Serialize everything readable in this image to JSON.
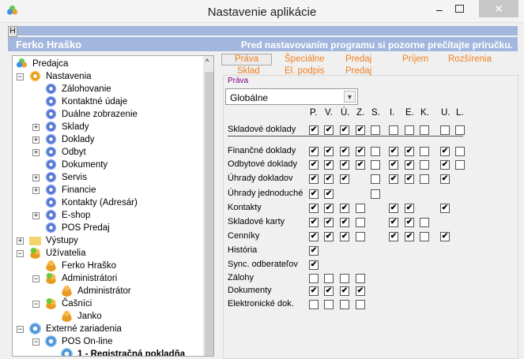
{
  "window": {
    "title": "Nastavenie aplikácie",
    "h_button": "H",
    "minimize": "‒",
    "close": "✕"
  },
  "header": {
    "user": "Ferko Hraško",
    "notice": "Pred nastavovaním programu si pozorne prečítajte príručku."
  },
  "tree": [
    {
      "label": "Predajca",
      "level": 0,
      "icon": "app",
      "exp": ""
    },
    {
      "label": "Nastavenia",
      "level": 1,
      "icon": "gearo",
      "exp": "-"
    },
    {
      "label": "Zálohovanie",
      "level": 2,
      "icon": "gear",
      "exp": ""
    },
    {
      "label": "Kontaktné údaje",
      "level": 2,
      "icon": "gear",
      "exp": ""
    },
    {
      "label": "Duálne zobrazenie",
      "level": 2,
      "icon": "gear",
      "exp": ""
    },
    {
      "label": "Sklady",
      "level": 2,
      "icon": "gear",
      "exp": "+"
    },
    {
      "label": "Doklady",
      "level": 2,
      "icon": "gear",
      "exp": "+"
    },
    {
      "label": "Odbyt",
      "level": 2,
      "icon": "gear",
      "exp": "+"
    },
    {
      "label": "Dokumenty",
      "level": 2,
      "icon": "gear",
      "exp": ""
    },
    {
      "label": "Servis",
      "level": 2,
      "icon": "gear",
      "exp": "+"
    },
    {
      "label": "Financie",
      "level": 2,
      "icon": "gear",
      "exp": "+"
    },
    {
      "label": "Kontakty (Adresár)",
      "level": 2,
      "icon": "gear",
      "exp": ""
    },
    {
      "label": "E-shop",
      "level": 2,
      "icon": "gear",
      "exp": "+"
    },
    {
      "label": "POS Predaj",
      "level": 2,
      "icon": "gear",
      "exp": ""
    },
    {
      "label": "Výstupy",
      "level": 1,
      "icon": "folder",
      "exp": "+"
    },
    {
      "label": "Užívatelia",
      "level": 1,
      "icon": "group",
      "exp": "-"
    },
    {
      "label": "Ferko Hraško",
      "level": 2,
      "icon": "user",
      "exp": ""
    },
    {
      "label": "Administrátori",
      "level": 2,
      "icon": "group",
      "exp": "-"
    },
    {
      "label": "Administrátor",
      "level": 3,
      "icon": "user",
      "exp": ""
    },
    {
      "label": "Čašníci",
      "level": 2,
      "icon": "group",
      "exp": "-"
    },
    {
      "label": "Janko",
      "level": 3,
      "icon": "user",
      "exp": ""
    },
    {
      "label": "Externé zariadenia",
      "level": 1,
      "icon": "euro",
      "exp": "-"
    },
    {
      "label": "POS On-line",
      "level": 2,
      "icon": "euro",
      "exp": "-"
    },
    {
      "label": "1 - Registračná pokladňa",
      "level": 3,
      "icon": "euro",
      "exp": "",
      "bold": true
    }
  ],
  "tabs": {
    "row1": [
      "Práva",
      "Špeciálne",
      "Predaj",
      "Príjem",
      "Rozšírenia"
    ],
    "row2": [
      "Sklad",
      "El. podpis",
      "Predaj"
    ],
    "active": "Práva"
  },
  "rights": {
    "group_label": "Práva",
    "scope_select": "Globálne",
    "columns": [
      "P.",
      "V.",
      "Ú.",
      "Z.",
      "S.",
      "I.",
      "E.",
      "K.",
      "U.",
      "L."
    ],
    "rows": [
      {
        "label": "Skladové doklady",
        "cells": "ccccuuuuuu"
      },
      {
        "label": "Finančné doklady",
        "cells": "ccccuccucu"
      },
      {
        "label": "Odbytové doklady",
        "cells": "ccccuccucu"
      },
      {
        "label": "Úhrady dokladov",
        "cells": "cccnuccucn"
      },
      {
        "label": "Úhrady jednoduché",
        "cells": "ccnnunnnnn"
      },
      {
        "label": "Kontakty",
        "cells": "cccunccncn"
      },
      {
        "label": "Skladové karty",
        "cells": "cccunccunn"
      },
      {
        "label": "Cenníky",
        "cells": "cccunccucn"
      },
      {
        "label": "História",
        "cells": "cnnnnnnnnn"
      },
      {
        "label": "Sync. odberateľov",
        "cells": "cnnnnnnnnn"
      },
      {
        "label": "Zálohy",
        "cells": "uuuunnnnnn"
      },
      {
        "label": "Dokumenty",
        "cells": "ccccnnnnnn"
      },
      {
        "label": "Elektronické dok.",
        "cells": "uuuunnnnnn"
      }
    ]
  },
  "colors": {
    "header_bar": "#a3b6dd",
    "tab_text": "#f08020",
    "group_label": "#800080"
  }
}
